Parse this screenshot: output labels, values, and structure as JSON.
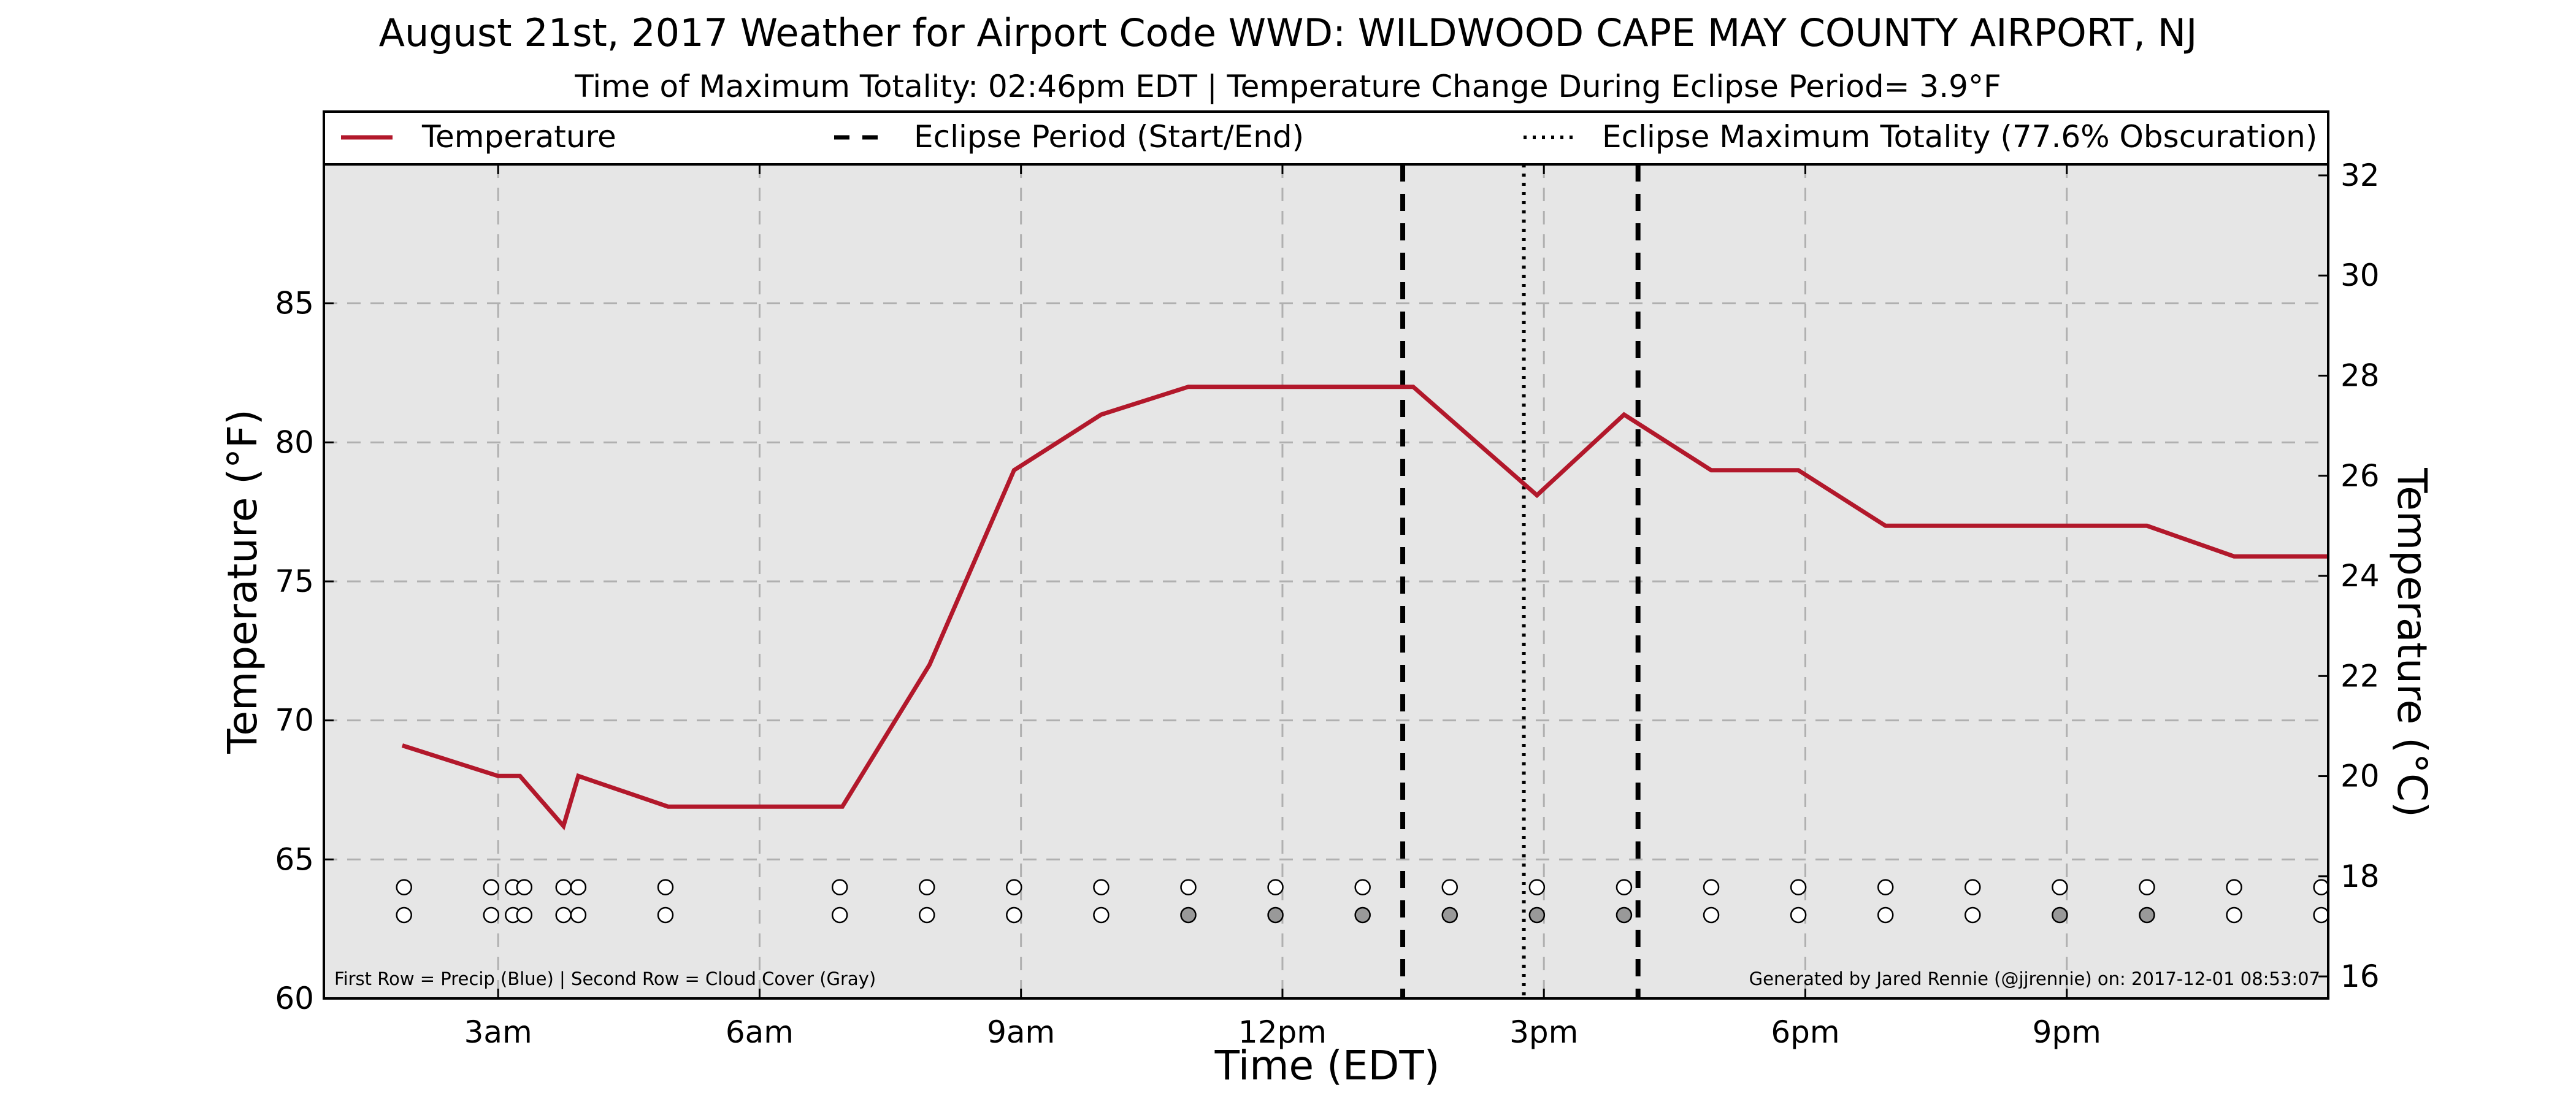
{
  "chart_data": {
    "type": "line",
    "title": "August 21st, 2017 Weather for Airport Code WWD: WILDWOOD CAPE MAY COUNTY AIRPORT, NJ",
    "subtitle": "Time of Maximum Totality: 02:46pm EDT | Temperature Change During Eclipse Period= 3.9°F",
    "xlabel": "Time (EDT)",
    "ylabel": "Temperature (°F)",
    "ylabel_right": "Temperature (°C)",
    "x_unit": "hours (EDT)",
    "xlim": [
      1.0,
      24.0
    ],
    "ylim": [
      60,
      90
    ],
    "ylim_right": [
      15.56,
      32.22
    ],
    "x_ticks": [
      3,
      6,
      9,
      12,
      15,
      18,
      21
    ],
    "x_tick_labels": [
      "3am",
      "6am",
      "9am",
      "12pm",
      "3pm",
      "6pm",
      "9pm"
    ],
    "y_ticks": [
      60,
      65,
      70,
      75,
      80,
      85
    ],
    "y_tick_labels": [
      "60",
      "65",
      "70",
      "75",
      "80",
      "85"
    ],
    "y_right_ticks": [
      16,
      18,
      20,
      22,
      24,
      26,
      28,
      30,
      32
    ],
    "y_right_tick_labels": [
      "16",
      "18",
      "20",
      "22",
      "24",
      "26",
      "28",
      "30",
      "32"
    ],
    "grid": true,
    "legend_placement": "top, above plot",
    "legend": [
      {
        "label": "Temperature",
        "style": "solid",
        "color": "#b2182b"
      },
      {
        "label": "Eclipse Period (Start/End)",
        "style": "dashed",
        "color": "#000000"
      },
      {
        "label": "Eclipse Maximum Totality (77.6% Obscuration)",
        "style": "dotted",
        "color": "#000000"
      }
    ],
    "series": [
      {
        "name": "Temperature",
        "color": "#b2182b",
        "x": [
          1.9,
          3.0,
          3.25,
          3.75,
          3.92,
          4.95,
          6.95,
          7.95,
          8.92,
          9.92,
          10.92,
          11.92,
          12.92,
          13.5,
          14.92,
          15.92,
          16.92,
          17.92,
          18.92,
          19.92,
          20.92,
          21.92,
          22.92,
          24.0
        ],
        "y": [
          69.1,
          68.0,
          68.0,
          66.2,
          68.0,
          66.9,
          66.9,
          72.0,
          79.0,
          81.0,
          82.0,
          82.0,
          82.0,
          82.0,
          78.1,
          81.0,
          79.0,
          79.0,
          77.0,
          77.0,
          77.0,
          77.0,
          75.9,
          75.9
        ]
      }
    ],
    "eclipse_start_hour": 13.38,
    "eclipse_end_hour": 16.08,
    "eclipse_max_hour": 14.77,
    "observation_rows": {
      "hours": [
        1.92,
        2.92,
        3.17,
        3.3,
        3.75,
        3.92,
        4.92,
        6.92,
        7.92,
        8.92,
        9.92,
        10.92,
        11.92,
        12.92,
        13.92,
        14.92,
        15.92,
        16.92,
        17.92,
        18.92,
        19.92,
        20.92,
        21.92,
        22.92,
        23.92
      ],
      "precip_y": 64.0,
      "cloud_y": 63.0,
      "precip_fill": [
        "#ffffff",
        "#ffffff",
        "#ffffff",
        "#ffffff",
        "#ffffff",
        "#ffffff",
        "#ffffff",
        "#ffffff",
        "#ffffff",
        "#ffffff",
        "#ffffff",
        "#ffffff",
        "#ffffff",
        "#ffffff",
        "#ffffff",
        "#ffffff",
        "#ffffff",
        "#ffffff",
        "#ffffff",
        "#ffffff",
        "#ffffff",
        "#ffffff",
        "#ffffff",
        "#ffffff",
        "#ffffff"
      ],
      "cloud_fill": [
        "#ffffff",
        "#ffffff",
        "#ffffff",
        "#ffffff",
        "#ffffff",
        "#ffffff",
        "#ffffff",
        "#ffffff",
        "#ffffff",
        "#ffffff",
        "#ffffff",
        "#999999",
        "#999999",
        "#999999",
        "#999999",
        "#999999",
        "#999999",
        "#ffffff",
        "#ffffff",
        "#ffffff",
        "#ffffff",
        "#999999",
        "#999999",
        "#ffffff",
        "#ffffff"
      ]
    },
    "footnote_left": "First Row = Precip (Blue) | Second Row = Cloud Cover (Gray)",
    "footnote_right": "Generated by Jared Rennie (@jjrennie) on: 2017-12-01 08:53:07"
  },
  "colors": {
    "plot_background": "#e6e6e6",
    "grid": "#b0b0b0",
    "temperature_line": "#b2182b"
  }
}
